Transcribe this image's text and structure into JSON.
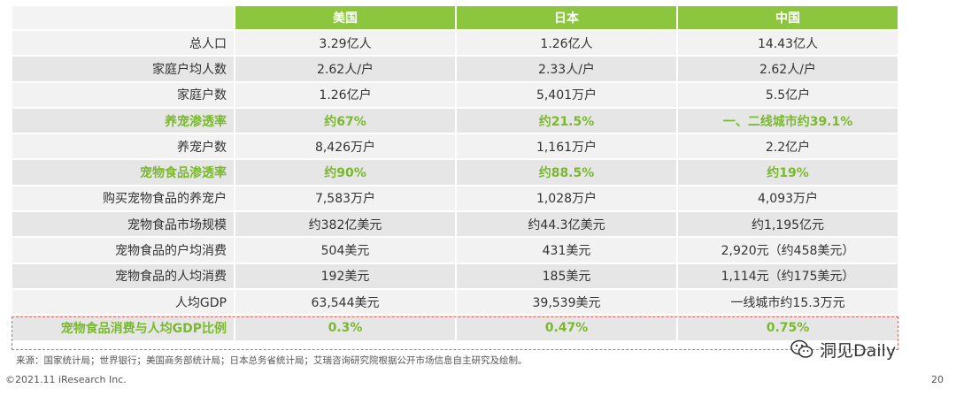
{
  "columns": [
    "美国",
    "日本",
    "中国"
  ],
  "rows": [
    {
      "label": "总人口",
      "values": [
        "3.29亿人",
        "1.26亿人",
        "14.43亿人"
      ],
      "highlight": false
    },
    {
      "label": "家庭户均人数",
      "values": [
        "2.62人/户",
        "2.33人/户",
        "2.62人/户"
      ],
      "highlight": false
    },
    {
      "label": "家庭户数",
      "values": [
        "1.26亿户",
        "5,401万户",
        "5.5亿户"
      ],
      "highlight": false
    },
    {
      "label": "养宠渗透率",
      "values": [
        "约67%",
        "约21.5%",
        "一、二线城市约39.1%"
      ],
      "highlight": true
    },
    {
      "label": "养宠户数",
      "values": [
        "8,426万户",
        "1,161万户",
        "2.2亿户"
      ],
      "highlight": false
    },
    {
      "label": "宠物食品渗透率",
      "values": [
        "约90%",
        "约88.5%",
        "约19%"
      ],
      "highlight": true
    },
    {
      "label": "购买宠物食品的养宠户",
      "values": [
        "7,583万户",
        "1,028万户",
        "4,093万户"
      ],
      "highlight": false
    },
    {
      "label": "宠物食品市场规模",
      "values": [
        "约382亿美元",
        "约44.3亿美元",
        "约1,195亿元"
      ],
      "highlight": false
    },
    {
      "label": "宠物食品的户均消费",
      "values": [
        "504美元",
        "431美元",
        "2,920元（约458美元）"
      ],
      "highlight": false
    },
    {
      "label": "宠物食品的人均消费",
      "values": [
        "192美元",
        "185美元",
        "1,114元（约175美元）"
      ],
      "highlight": false
    },
    {
      "label": "人均GDP",
      "values": [
        "63,544美元",
        "39,539美元",
        "一线城市约15.3万元"
      ],
      "highlight": false
    },
    {
      "label": "宠物食品消费与人均GDP比例",
      "values": [
        "0.3%",
        "0.47%",
        "0.75%"
      ],
      "highlight": true
    }
  ],
  "source": "来源：国家统计局；世界银行；美国商务部统计局；日本总务省统计局；艾瑞咨询研究院根据公开市场信息自主研究及绘制。",
  "copyright": "©2021.11 iResearch Inc.",
  "page_number": "20",
  "watermark": "洞见Daily",
  "colors": {
    "accent": "#8cc63e",
    "highlight_text": "#7ab82e",
    "dashed_border": "#e26a6a"
  }
}
